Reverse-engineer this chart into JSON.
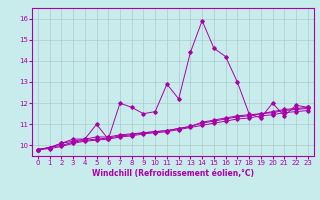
{
  "title": "",
  "xlabel": "Windchill (Refroidissement éolien,°C)",
  "ylabel": "",
  "background_color": "#c8ecec",
  "line_color": "#aa00aa",
  "grid_color": "#aacccc",
  "xlim": [
    -0.5,
    23.5
  ],
  "ylim": [
    9.5,
    16.5
  ],
  "yticks": [
    10,
    11,
    12,
    13,
    14,
    15,
    16
  ],
  "xticks": [
    0,
    1,
    2,
    3,
    4,
    5,
    6,
    7,
    8,
    9,
    10,
    11,
    12,
    13,
    14,
    15,
    16,
    17,
    18,
    19,
    20,
    21,
    22,
    23
  ],
  "series": [
    [
      9.8,
      9.9,
      10.1,
      10.3,
      10.3,
      11.0,
      10.3,
      12.0,
      11.8,
      11.5,
      11.6,
      12.9,
      12.2,
      14.4,
      15.9,
      14.6,
      14.2,
      13.0,
      11.5,
      11.3,
      12.0,
      11.4,
      11.9,
      11.8
    ],
    [
      9.8,
      9.9,
      10.1,
      10.2,
      10.3,
      10.4,
      10.4,
      10.5,
      10.55,
      10.6,
      10.65,
      10.7,
      10.8,
      10.9,
      11.1,
      11.2,
      11.3,
      11.4,
      11.45,
      11.5,
      11.6,
      11.7,
      11.75,
      11.8
    ],
    [
      9.8,
      9.9,
      10.0,
      10.15,
      10.25,
      10.3,
      10.35,
      10.45,
      10.5,
      10.6,
      10.65,
      10.7,
      10.8,
      10.9,
      11.05,
      11.15,
      11.25,
      11.35,
      11.4,
      11.5,
      11.55,
      11.65,
      11.7,
      11.75
    ],
    [
      9.8,
      9.85,
      9.95,
      10.1,
      10.2,
      10.25,
      10.3,
      10.4,
      10.45,
      10.55,
      10.6,
      10.65,
      10.75,
      10.85,
      10.95,
      11.05,
      11.15,
      11.25,
      11.3,
      11.4,
      11.45,
      11.55,
      11.6,
      11.65
    ]
  ],
  "tick_fontsize": 5.0,
  "xlabel_fontsize": 5.5
}
